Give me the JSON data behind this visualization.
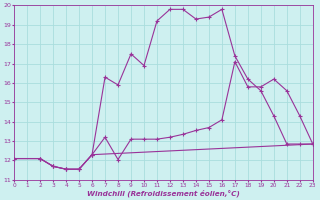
{
  "bg_color": "#cef0f0",
  "line_color": "#993399",
  "grid_color": "#aadddd",
  "xlabel": "Windchill (Refroidissement éolien,°C)",
  "ylim": [
    11,
    20
  ],
  "xlim": [
    0,
    23
  ],
  "yticks": [
    11,
    12,
    13,
    14,
    15,
    16,
    17,
    18,
    19,
    20
  ],
  "xticks": [
    0,
    1,
    2,
    3,
    4,
    5,
    6,
    7,
    8,
    9,
    10,
    11,
    12,
    13,
    14,
    15,
    16,
    17,
    18,
    19,
    20,
    21,
    22,
    23
  ],
  "line1_x": [
    0,
    2,
    3,
    4,
    5,
    6,
    7,
    8,
    9,
    10,
    11,
    12,
    13,
    14,
    15,
    16,
    17,
    18,
    19,
    20,
    21,
    22,
    23
  ],
  "line1_y": [
    12.1,
    12.1,
    11.7,
    11.55,
    11.55,
    12.3,
    16.3,
    15.9,
    17.5,
    16.9,
    19.2,
    19.8,
    19.8,
    19.3,
    19.4,
    19.8,
    17.4,
    16.2,
    15.6,
    14.3,
    12.85,
    12.85,
    12.85
  ],
  "line2_x": [
    0,
    2,
    3,
    4,
    5,
    6,
    7,
    8,
    9,
    10,
    11,
    12,
    13,
    14,
    15,
    16,
    17,
    18,
    19,
    20,
    21,
    22,
    23
  ],
  "line2_y": [
    12.1,
    12.1,
    11.7,
    11.55,
    11.55,
    12.3,
    13.2,
    12.05,
    13.1,
    13.1,
    13.1,
    13.2,
    13.35,
    13.55,
    13.7,
    14.1,
    17.1,
    15.8,
    15.8,
    16.2,
    15.6,
    14.3,
    12.85
  ],
  "line3_x": [
    0,
    2,
    3,
    4,
    5,
    6,
    23
  ],
  "line3_y": [
    12.1,
    12.1,
    11.7,
    11.55,
    11.55,
    12.3,
    12.85
  ]
}
